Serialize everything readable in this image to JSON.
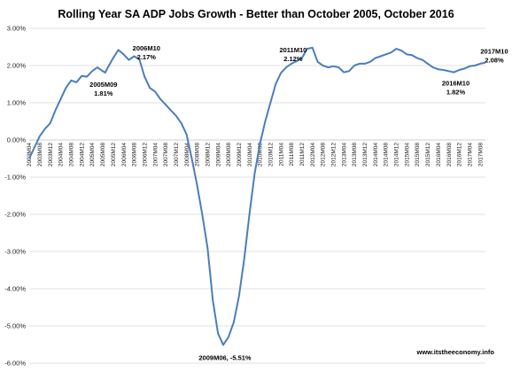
{
  "chart_data": {
    "type": "line",
    "title": "Rolling Year SA ADP Jobs Growth - Better than October  2005, October 2016",
    "xlabel": "",
    "ylabel": "",
    "ylim": [
      -6.0,
      3.0
    ],
    "yticks": [
      3,
      2,
      1,
      0,
      -1,
      -2,
      -3,
      -4,
      -5,
      -6
    ],
    "ytick_labels": [
      "3.00%",
      "2.00%",
      "1.00%",
      "0.00%",
      "-1.00%",
      "-2.00%",
      "-3.00%",
      "-4.00%",
      "-5.00%",
      "-6.00%"
    ],
    "grid": true,
    "x_start": "2003M04",
    "x_end": "2017M10",
    "xtick_labels": [
      "2003M04",
      "2003M08",
      "2003M12",
      "2004M04",
      "2004M08",
      "2004M12",
      "2005M04",
      "2005M08",
      "2005M12",
      "2006M04",
      "2006M08",
      "2006M12",
      "2007M04",
      "2007M08",
      "2007M12",
      "2008M04",
      "2008M08",
      "2008M12",
      "2009M04",
      "2009M08",
      "2009M12",
      "2010M04",
      "2010M08",
      "2010M12",
      "2011M04",
      "2011M08",
      "2011M12",
      "2012M04",
      "2012M08",
      "2012M12",
      "2013M04",
      "2013M08",
      "2013M12",
      "2014M04",
      "2014M08",
      "2014M12",
      "2015M04",
      "2015M08",
      "2015M12",
      "2016M04",
      "2016M08",
      "2016M12",
      "2017M04",
      "2017M08"
    ],
    "series": [
      {
        "color": "#4a7ebb",
        "points": [
          [
            "2003M04",
            -0.5
          ],
          [
            "2003M06",
            -0.2
          ],
          [
            "2003M08",
            0.1
          ],
          [
            "2003M10",
            0.3
          ],
          [
            "2003M12",
            0.45
          ],
          [
            "2004M02",
            0.8
          ],
          [
            "2004M04",
            1.1
          ],
          [
            "2004M06",
            1.4
          ],
          [
            "2004M08",
            1.6
          ],
          [
            "2004M10",
            1.55
          ],
          [
            "2004M12",
            1.72
          ],
          [
            "2005M02",
            1.7
          ],
          [
            "2005M04",
            1.85
          ],
          [
            "2005M06",
            1.95
          ],
          [
            "2005M08",
            1.85
          ],
          [
            "2005M09",
            1.81
          ],
          [
            "2005M10",
            1.95
          ],
          [
            "2005M12",
            2.2
          ],
          [
            "2006M02",
            2.42
          ],
          [
            "2006M04",
            2.3
          ],
          [
            "2006M06",
            2.15
          ],
          [
            "2006M08",
            2.25
          ],
          [
            "2006M10",
            2.17
          ],
          [
            "2006M12",
            1.7
          ],
          [
            "2007M02",
            1.4
          ],
          [
            "2007M04",
            1.3
          ],
          [
            "2007M06",
            1.1
          ],
          [
            "2007M08",
            0.95
          ],
          [
            "2007M10",
            0.8
          ],
          [
            "2007M12",
            0.65
          ],
          [
            "2008M02",
            0.45
          ],
          [
            "2008M04",
            0.15
          ],
          [
            "2008M06",
            -0.5
          ],
          [
            "2008M08",
            -1.2
          ],
          [
            "2008M10",
            -2.0
          ],
          [
            "2008M12",
            -2.9
          ],
          [
            "2009M02",
            -4.3
          ],
          [
            "2009M04",
            -5.2
          ],
          [
            "2009M06",
            -5.51
          ],
          [
            "2009M08",
            -5.3
          ],
          [
            "2009M10",
            -4.9
          ],
          [
            "2009M12",
            -4.2
          ],
          [
            "2010M02",
            -3.2
          ],
          [
            "2010M04",
            -2.0
          ],
          [
            "2010M06",
            -0.9
          ],
          [
            "2010M08",
            -0.1
          ],
          [
            "2010M10",
            0.5
          ],
          [
            "2010M12",
            1.0
          ],
          [
            "2011M02",
            1.5
          ],
          [
            "2011M04",
            1.8
          ],
          [
            "2011M06",
            1.95
          ],
          [
            "2011M08",
            2.05
          ],
          [
            "2011M10",
            2.12
          ],
          [
            "2011M12",
            2.2
          ],
          [
            "2012M02",
            2.45
          ],
          [
            "2012M04",
            2.48
          ],
          [
            "2012M06",
            2.1
          ],
          [
            "2012M08",
            2.0
          ],
          [
            "2012M10",
            1.95
          ],
          [
            "2012M12",
            1.98
          ],
          [
            "2013M02",
            1.95
          ],
          [
            "2013M04",
            1.82
          ],
          [
            "2013M06",
            1.85
          ],
          [
            "2013M08",
            2.0
          ],
          [
            "2013M10",
            2.05
          ],
          [
            "2013M12",
            2.05
          ],
          [
            "2014M02",
            2.1
          ],
          [
            "2014M04",
            2.2
          ],
          [
            "2014M06",
            2.25
          ],
          [
            "2014M08",
            2.3
          ],
          [
            "2014M10",
            2.35
          ],
          [
            "2014M12",
            2.45
          ],
          [
            "2015M02",
            2.4
          ],
          [
            "2015M04",
            2.3
          ],
          [
            "2015M06",
            2.28
          ],
          [
            "2015M08",
            2.2
          ],
          [
            "2015M10",
            2.15
          ],
          [
            "2015M12",
            2.05
          ],
          [
            "2016M02",
            1.95
          ],
          [
            "2016M04",
            1.9
          ],
          [
            "2016M06",
            1.88
          ],
          [
            "2016M08",
            1.85
          ],
          [
            "2016M10",
            1.82
          ],
          [
            "2016M12",
            1.88
          ],
          [
            "2017M02",
            1.92
          ],
          [
            "2017M04",
            1.98
          ],
          [
            "2017M06",
            2.0
          ],
          [
            "2017M08",
            2.05
          ],
          [
            "2017M10",
            2.08
          ]
        ]
      }
    ],
    "annotations": [
      {
        "label": "2005M09",
        "value_label": "1.81%",
        "at": "2005M09",
        "value": 1.81
      },
      {
        "label": "2006M10",
        "value_label": "2.17%",
        "at": "2006M10",
        "value": 2.17
      },
      {
        "label": "2009M06, -5.51%",
        "at": "2009M06",
        "value": -5.51
      },
      {
        "label": "2011M10",
        "value_label": "2.12%",
        "at": "2011M10",
        "value": 2.12
      },
      {
        "label": "2016M10",
        "value_label": "1.82%",
        "at": "2016M10",
        "value": 1.82
      },
      {
        "label": "2017M10",
        "value_label": "2.08%",
        "at": "2017M10",
        "value": 2.08
      }
    ],
    "source": "www.itstheeconomy.info"
  }
}
